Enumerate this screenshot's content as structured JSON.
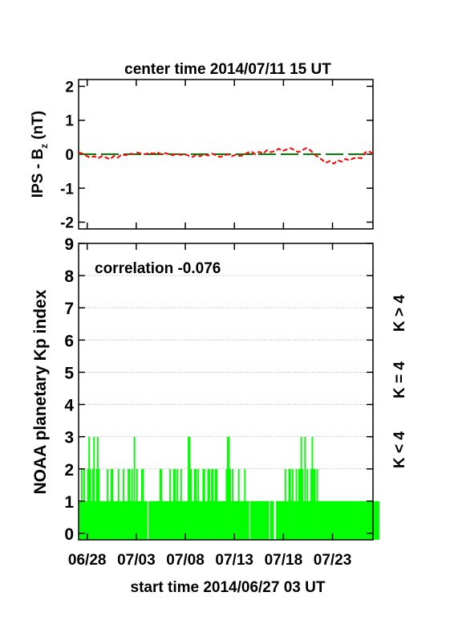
{
  "top_title": "center time 2014/07/11 15 UT",
  "bottom_title": "start time 2014/06/27 03 UT",
  "colors": {
    "ips_line": "#ff0000",
    "zero_line": "#008000",
    "kp_bars": "#00ff00",
    "k_gt4": "#ff0000",
    "k_eq4": "#ffd700",
    "k_lt4": "#00ff00"
  },
  "chart_data": [
    {
      "type": "line",
      "ylabel_main": "IPS - B",
      "ylabel_sub": "z",
      "ylabel_unit": " (nT)",
      "ylim": [
        -2.2,
        2.2
      ],
      "yticks": [
        -2,
        -1,
        0,
        1,
        2
      ],
      "xlim_days": [
        0,
        30
      ],
      "grid": false,
      "series": [
        {
          "x_days": [
            0.0,
            0.4,
            0.8,
            1.2,
            1.6,
            2.0,
            2.4,
            2.8,
            3.2,
            3.6,
            4.0,
            4.4,
            4.8,
            5.2,
            5.6,
            6.0,
            6.4,
            6.8,
            7.2,
            7.6,
            8.0,
            8.4,
            8.8,
            9.2,
            9.6,
            10.0,
            10.4,
            10.8,
            11.2,
            11.6,
            12.0,
            12.4,
            12.8,
            13.2,
            13.6,
            14.0,
            14.4,
            14.8,
            15.2,
            15.6,
            16.0,
            16.4,
            16.8,
            17.2,
            17.6,
            18.0,
            18.4,
            18.8,
            19.2,
            19.6,
            20.0,
            20.4,
            20.8,
            21.2,
            21.6,
            22.0,
            22.4,
            22.8,
            23.2,
            23.6,
            24.0,
            24.4,
            24.8,
            25.2,
            25.6,
            26.0,
            26.4,
            26.8,
            27.2,
            27.6,
            28.0,
            28.4,
            28.8,
            29.2,
            29.6,
            30.0
          ],
          "values": [
            0.05,
            0.02,
            -0.05,
            -0.1,
            -0.06,
            -0.12,
            -0.05,
            -0.1,
            -0.15,
            -0.05,
            -0.1,
            0.0,
            -0.03,
            0.02,
            0.0,
            0.05,
            0.02,
            0.0,
            0.04,
            0.02,
            0.06,
            0.0,
            0.03,
            0.0,
            -0.03,
            0.02,
            -0.02,
            0.0,
            -0.04,
            -0.08,
            -0.02,
            -0.06,
            0.0,
            -0.04,
            0.02,
            -0.03,
            -0.08,
            -0.04,
            0.0,
            -0.06,
            -0.02,
            -0.05,
            -0.03,
            0.04,
            0.08,
            0.0,
            0.07,
            0.02,
            0.12,
            0.06,
            0.1,
            0.16,
            0.1,
            0.14,
            0.18,
            0.12,
            0.06,
            0.12,
            0.18,
            0.12,
            0.0,
            -0.08,
            -0.16,
            -0.25,
            -0.2,
            -0.28,
            -0.18,
            -0.22,
            -0.14,
            -0.18,
            -0.12,
            -0.1,
            -0.12,
            0.05,
            0.08,
            0.02
          ]
        }
      ]
    },
    {
      "type": "bar",
      "ylabel": "NOAA planetary Kp index",
      "annotation": "correlation -0.076",
      "ylim": [
        -0.2,
        9.0
      ],
      "yticks": [
        0,
        1,
        2,
        3,
        4,
        5,
        6,
        7,
        8,
        9
      ],
      "grid": true,
      "xlim_days": [
        0,
        30
      ],
      "xtick_labels": [
        "06/28",
        "07/03",
        "07/08",
        "07/13",
        "07/18",
        "07/23"
      ],
      "xtick_days": [
        0.875,
        5.875,
        10.875,
        15.875,
        20.875,
        25.875
      ],
      "bin_hours": 3,
      "values": [
        1,
        1,
        2,
        1,
        2,
        1,
        1,
        2,
        3,
        2,
        1,
        2,
        3,
        1,
        2,
        3,
        2,
        1,
        1,
        1,
        1,
        1,
        1,
        2,
        1,
        1,
        2,
        2,
        1,
        1,
        1,
        1,
        2,
        1,
        1,
        1,
        2,
        1,
        1,
        1,
        2,
        2,
        1,
        2,
        1,
        3,
        1,
        2,
        1,
        1,
        1,
        2,
        2,
        1,
        1,
        1,
        0,
        1,
        1,
        1,
        1,
        1,
        1,
        1,
        1,
        1,
        2,
        2,
        1,
        1,
        1,
        1,
        1,
        1,
        2,
        1,
        1,
        2,
        2,
        1,
        2,
        1,
        1,
        2,
        1,
        1,
        1,
        1,
        1,
        3,
        3,
        2,
        1,
        1,
        2,
        2,
        1,
        2,
        1,
        1,
        1,
        2,
        2,
        1,
        1,
        2,
        2,
        1,
        2,
        2,
        1,
        2,
        2,
        1,
        1,
        1,
        1,
        1,
        1,
        1,
        2,
        3,
        3,
        2,
        1,
        2,
        1,
        1,
        1,
        1,
        2,
        1,
        1,
        1,
        1,
        2,
        1,
        1,
        1,
        0,
        1,
        1,
        1,
        1,
        1,
        1,
        1,
        1,
        1,
        1,
        1,
        1,
        1,
        1,
        1,
        0,
        1,
        1,
        1,
        0,
        0,
        1,
        1,
        1,
        1,
        1,
        1,
        1,
        2,
        1,
        1,
        2,
        2,
        1,
        2,
        1,
        1,
        2,
        1,
        2,
        2,
        3,
        2,
        1,
        3,
        1,
        2,
        1,
        1,
        2,
        3,
        2,
        2,
        1,
        2,
        1,
        1,
        1,
        1,
        1,
        1,
        1,
        1,
        1,
        1,
        1,
        1,
        1,
        1,
        1,
        1,
        1,
        1,
        1,
        1,
        1,
        1,
        1,
        1,
        1,
        1,
        1,
        1,
        1,
        1,
        1,
        1,
        1,
        1,
        1,
        1,
        1,
        1,
        1,
        1,
        1,
        1,
        1,
        1,
        1,
        1,
        1,
        1,
        1,
        1
      ]
    }
  ],
  "legend": {
    "k_gt4": "K > 4",
    "k_eq4": "K = 4",
    "k_lt4": "K < 4"
  }
}
